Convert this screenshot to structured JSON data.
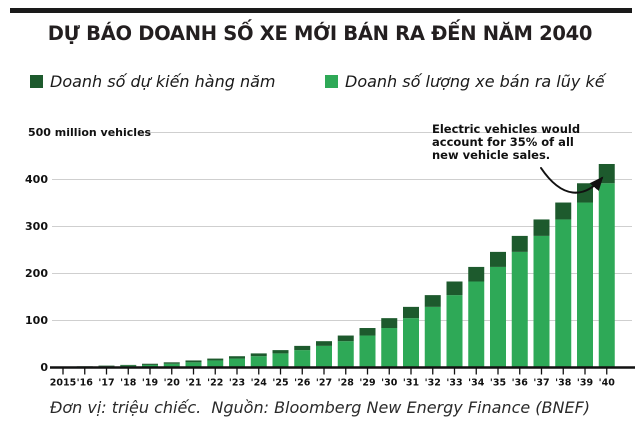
{
  "header": {
    "title": "DỰ BÁO DOANH SỐ XE MỚI BÁN RA ĐẾN NĂM 2040"
  },
  "legend": {
    "items": [
      {
        "label": "Doanh số dự kiến hàng năm",
        "color": "#1d5a2d"
      },
      {
        "label": "Doanh số lượng xe bán ra lũy kế",
        "color": "#2ea957"
      }
    ]
  },
  "chart_data": {
    "type": "bar",
    "stacked": true,
    "title": "DỰ BÁO DOANH SỐ XE MỚI BÁN RA ĐẾN NĂM 2040",
    "unit": "million vehicles",
    "x": [
      "2015",
      "'16",
      "'17",
      "'18",
      "'19",
      "'20",
      "'21",
      "'22",
      "'23",
      "'24",
      "'25",
      "'26",
      "'27",
      "'28",
      "'29",
      "'30",
      "'31",
      "'32",
      "'33",
      "'34",
      "'35",
      "'36",
      "'37",
      "'38",
      "'39",
      "'40"
    ],
    "series": [
      {
        "name": "Doanh số lượng xe bán ra lũy kế (cumulative, bottom segment)",
        "color": "#2ea957",
        "values": [
          0.5,
          1.5,
          2.5,
          4,
          5.5,
          8,
          11,
          15,
          19,
          24,
          30,
          37,
          46,
          56,
          68,
          84,
          105,
          129,
          154,
          183,
          214,
          246,
          280,
          315,
          351,
          392
        ]
      },
      {
        "name": "Doanh số dự kiến hàng năm (annual, dark top cap)",
        "color": "#1d5a2d",
        "values": [
          1,
          1,
          1.5,
          1.5,
          2.5,
          3,
          4,
          4,
          5,
          6,
          7,
          9,
          10,
          12,
          16,
          21,
          24,
          25,
          29,
          31,
          32,
          34,
          35,
          36,
          41,
          41
        ]
      }
    ],
    "bar_top_totals": [
      1.5,
      2.5,
      4,
      5.5,
      8,
      11,
      15,
      19,
      24,
      30,
      37,
      46,
      56,
      68,
      84,
      105,
      129,
      154,
      183,
      214,
      246,
      280,
      315,
      351,
      392,
      433
    ],
    "ylabel": "500 million vehicles",
    "yticks": [
      0,
      100,
      200,
      300,
      400,
      500
    ],
    "ylim": [
      0,
      500
    ],
    "grid": true,
    "legend_position": "top",
    "annotation": {
      "lines": [
        "Electric vehicles would",
        "account for 35% of all",
        "new vehicle sales."
      ],
      "target": "2040 bar dark cap"
    }
  },
  "footer": {
    "caption": "Đơn vị: triệu chiếc.  Nguồn: Bloomberg New Energy Finance (BNEF)"
  }
}
